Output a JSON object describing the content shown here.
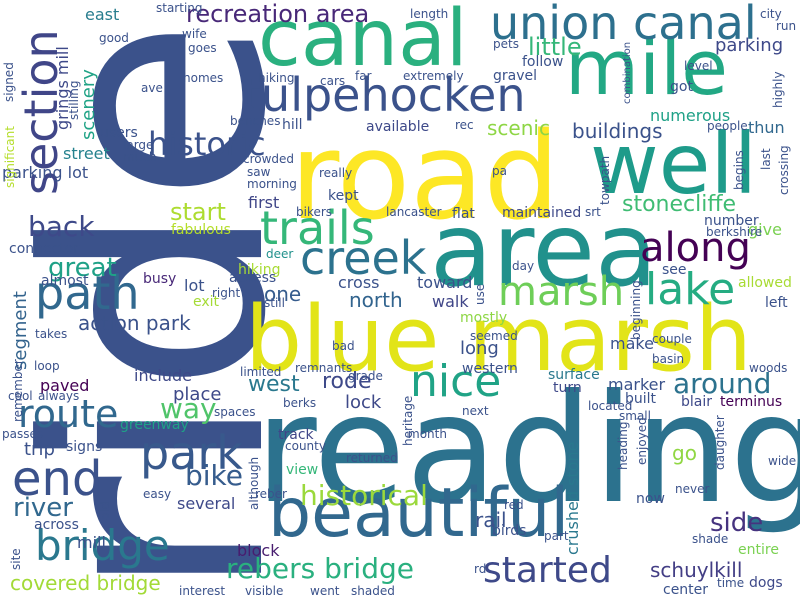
{
  "colors": {
    "background": "#ffffff",
    "palette": [
      "#440154",
      "#46327e",
      "#365c8d",
      "#277f8e",
      "#1fa187",
      "#4ac16d",
      "#a0da39",
      "#fde725"
    ]
  },
  "words": [
    {
      "text": "ride",
      "color": "#3b528b"
    },
    {
      "text": "reading",
      "color": "#2c728e"
    },
    {
      "text": "road",
      "color": "#fde725"
    },
    {
      "text": "blue marsh",
      "color": "#e2e418"
    },
    {
      "text": "area",
      "color": "#21918c"
    },
    {
      "text": "canal",
      "color": "#2ab07f"
    },
    {
      "text": "mile",
      "color": "#22a884"
    },
    {
      "text": "well",
      "color": "#1e9b8a"
    },
    {
      "text": "beautiful",
      "color": "#31688e"
    },
    {
      "text": "union canal",
      "color": "#2d708e"
    },
    {
      "text": "tulpehocken",
      "color": "#3b528b"
    },
    {
      "text": "section",
      "color": "#404688"
    },
    {
      "text": "trails",
      "color": "#35b779"
    },
    {
      "text": "along",
      "color": "#440154"
    },
    {
      "text": "creek",
      "color": "#2c728e"
    },
    {
      "text": "path",
      "color": "#31688e"
    },
    {
      "text": "marsh",
      "color": "#6ece58"
    },
    {
      "text": "lake",
      "color": "#25ac82"
    },
    {
      "text": "park",
      "color": "#38598c"
    },
    {
      "text": "end",
      "color": "#3b528b"
    },
    {
      "text": "bridge",
      "color": "#2a788e"
    },
    {
      "text": "started",
      "color": "#3e4989"
    },
    {
      "text": "nice",
      "color": "#20a386"
    },
    {
      "text": "rebers bridge",
      "color": "#2ab07f"
    },
    {
      "text": "route",
      "color": "#31688e"
    },
    {
      "text": "historic",
      "color": "#3b528b"
    },
    {
      "text": "historical",
      "color": "#9bd93c"
    },
    {
      "text": "recreation area",
      "color": "#482878"
    },
    {
      "text": "great",
      "color": "#1fa187"
    },
    {
      "text": "back",
      "color": "#3e4989"
    },
    {
      "text": "bike",
      "color": "#365c8d"
    },
    {
      "text": "river",
      "color": "#31688e"
    },
    {
      "text": "way",
      "color": "#50c46a"
    },
    {
      "text": "around",
      "color": "#2c728e"
    },
    {
      "text": "side",
      "color": "#46337f"
    },
    {
      "text": "stonecliffe",
      "color": "#3fbc73"
    },
    {
      "text": "schuylkill",
      "color": "#433e85"
    },
    {
      "text": "start",
      "color": "#addc30"
    },
    {
      "text": "little",
      "color": "#35b779"
    },
    {
      "text": "parking",
      "color": "#3e4989"
    },
    {
      "text": "buildings",
      "color": "#3b528b"
    },
    {
      "text": "west",
      "color": "#2a788e"
    },
    {
      "text": "rode",
      "color": "#3e4989"
    },
    {
      "text": "north",
      "color": "#32648e"
    },
    {
      "text": "action park",
      "color": "#3b528b"
    },
    {
      "text": "covered bridge",
      "color": "#a2da37"
    },
    {
      "text": "one",
      "color": "#365c8d"
    },
    {
      "text": "scenery",
      "color": "#20a386"
    },
    {
      "text": "scenic",
      "color": "#8ed645"
    },
    {
      "text": "segment",
      "color": "#33638d"
    },
    {
      "text": "crushed stone",
      "color": "#2a788e"
    },
    {
      "text": "rail",
      "color": "#3b528b"
    },
    {
      "text": "block",
      "color": "#481d6f"
    },
    {
      "text": "several",
      "color": "#3e4989"
    },
    {
      "text": "include",
      "color": "#3e4989"
    },
    {
      "text": "place",
      "color": "#3e4989"
    },
    {
      "text": "parking lot",
      "color": "#3b528b"
    },
    {
      "text": "street",
      "color": "#26828e"
    },
    {
      "text": "lock",
      "color": "#3e4989"
    },
    {
      "text": "long",
      "color": "#3b528b"
    },
    {
      "text": "walk",
      "color": "#404688"
    },
    {
      "text": "make",
      "color": "#3b528b"
    },
    {
      "text": "marker",
      "color": "#3b528b"
    },
    {
      "text": "numerous",
      "color": "#1fa187"
    },
    {
      "text": "thun",
      "color": "#31688e"
    },
    {
      "text": "grings mill",
      "color": "#3e4989"
    },
    {
      "text": "east",
      "color": "#287d8e"
    },
    {
      "text": "mill",
      "color": "#3b528b"
    },
    {
      "text": "paved",
      "color": "#440154"
    },
    {
      "text": "trip",
      "color": "#3b528b"
    },
    {
      "text": "cross",
      "color": "#3b528b"
    },
    {
      "text": "available",
      "color": "#3e4989"
    },
    {
      "text": "hill",
      "color": "#3b528b"
    },
    {
      "text": "first",
      "color": "#404688"
    },
    {
      "text": "kept",
      "color": "#3b528b"
    },
    {
      "text": "lot",
      "color": "#3b528b"
    },
    {
      "text": "exit",
      "color": "#a5db36"
    },
    {
      "text": "access",
      "color": "#3b528b"
    },
    {
      "text": "busy",
      "color": "#482878"
    },
    {
      "text": "deer",
      "color": "#21918c"
    },
    {
      "text": "hiking",
      "color": "#a8db34"
    },
    {
      "text": "toward",
      "color": "#3b528b"
    },
    {
      "text": "mostly",
      "color": "#8ed645"
    },
    {
      "text": "surface",
      "color": "#2a788e"
    },
    {
      "text": "turn",
      "color": "#3e4989"
    },
    {
      "text": "built",
      "color": "#3b528b"
    },
    {
      "text": "blair",
      "color": "#3e4989"
    },
    {
      "text": "terminus",
      "color": "#440154"
    },
    {
      "text": "western",
      "color": "#3b528b"
    },
    {
      "text": "track",
      "color": "#404688"
    },
    {
      "text": "county",
      "color": "#3b528b"
    },
    {
      "text": "view",
      "color": "#35b779"
    },
    {
      "text": "returned",
      "color": "#3b528b"
    },
    {
      "text": "greenway",
      "color": "#1fa187"
    },
    {
      "text": "signs",
      "color": "#3b528b"
    },
    {
      "text": "across",
      "color": "#3b528b"
    },
    {
      "text": "site",
      "color": "#3b528b"
    },
    {
      "text": "old",
      "color": "#3b528b"
    },
    {
      "text": "go",
      "color": "#90d743"
    },
    {
      "text": "now",
      "color": "#3b528b"
    },
    {
      "text": "red",
      "color": "#3b528b"
    },
    {
      "text": "birds",
      "color": "#3b528b"
    },
    {
      "text": "part",
      "color": "#3b528b"
    },
    {
      "text": "shade",
      "color": "#3b528b"
    },
    {
      "text": "entire",
      "color": "#7ad151"
    },
    {
      "text": "dogs",
      "color": "#3e4989"
    },
    {
      "text": "center",
      "color": "#3b528b"
    },
    {
      "text": "time",
      "color": "#3b528b"
    },
    {
      "text": "wide",
      "color": "#3b528b"
    },
    {
      "text": "woods",
      "color": "#3b528b"
    },
    {
      "text": "left",
      "color": "#3b528b"
    },
    {
      "text": "allowed",
      "color": "#a8db34"
    },
    {
      "text": "see",
      "color": "#3b528b"
    },
    {
      "text": "give",
      "color": "#7ad151"
    },
    {
      "text": "number",
      "color": "#3b528b"
    },
    {
      "text": "berkshire",
      "color": "#3b528b"
    },
    {
      "text": "day",
      "color": "#3b528b"
    },
    {
      "text": "srt",
      "color": "#3b528b"
    },
    {
      "text": "maintained",
      "color": "#3e4989"
    },
    {
      "text": "flat",
      "color": "#3b528b"
    },
    {
      "text": "lancaster",
      "color": "#3b528b"
    },
    {
      "text": "bikers",
      "color": "#3b528b"
    },
    {
      "text": "fabulous",
      "color": "#b5de2b"
    },
    {
      "text": "connector",
      "color": "#3b528b"
    },
    {
      "text": "almost",
      "color": "#3b528b"
    },
    {
      "text": "takes",
      "color": "#3b528b"
    },
    {
      "text": "loop",
      "color": "#3b528b"
    },
    {
      "text": "remember",
      "color": "#3b528b"
    },
    {
      "text": "cool",
      "color": "#3b528b"
    },
    {
      "text": "always",
      "color": "#3b528b"
    },
    {
      "text": "passes",
      "color": "#3b528b"
    },
    {
      "text": "significant",
      "color": "#b5de2b"
    },
    {
      "text": "stilling",
      "color": "#3b528b"
    },
    {
      "text": "users",
      "color": "#3b528b"
    },
    {
      "text": "large",
      "color": "#3b528b"
    },
    {
      "text": "much",
      "color": "#3b528b"
    },
    {
      "text": "homes",
      "color": "#3b528b"
    },
    {
      "text": "ave",
      "color": "#3b528b"
    },
    {
      "text": "wife",
      "color": "#3b528b"
    },
    {
      "text": "goes",
      "color": "#3b528b"
    },
    {
      "text": "good",
      "color": "#3b528b"
    },
    {
      "text": "starting",
      "color": "#3b528b"
    },
    {
      "text": "signed",
      "color": "#3b528b"
    },
    {
      "text": "hiking",
      "color": "#3b528b"
    },
    {
      "text": "cars",
      "color": "#3b528b"
    },
    {
      "text": "far",
      "color": "#3b528b"
    },
    {
      "text": "extremely",
      "color": "#3b528b"
    },
    {
      "text": "gravel",
      "color": "#3b528b"
    },
    {
      "text": "follow",
      "color": "#3b528b"
    },
    {
      "text": "pets",
      "color": "#3b528b"
    },
    {
      "text": "length",
      "color": "#3b528b"
    },
    {
      "text": "combination",
      "color": "#3b528b"
    },
    {
      "text": "level",
      "color": "#3b528b"
    },
    {
      "text": "got",
      "color": "#3b528b"
    },
    {
      "text": "city",
      "color": "#3b528b"
    },
    {
      "text": "run",
      "color": "#3b528b"
    },
    {
      "text": "highly",
      "color": "#3b528b"
    },
    {
      "text": "people",
      "color": "#3b528b"
    },
    {
      "text": "last",
      "color": "#3b528b"
    },
    {
      "text": "crossing",
      "color": "#3b528b"
    },
    {
      "text": "begins",
      "color": "#3b528b"
    },
    {
      "text": "towpath",
      "color": "#3b528b"
    },
    {
      "text": "benches",
      "color": "#3b528b"
    },
    {
      "text": "crowded",
      "color": "#3b528b"
    },
    {
      "text": "saw",
      "color": "#3b528b"
    },
    {
      "text": "morning",
      "color": "#3b528b"
    },
    {
      "text": "really",
      "color": "#3b528b"
    },
    {
      "text": "rec",
      "color": "#3b528b"
    },
    {
      "text": "pa",
      "color": "#3b528b"
    },
    {
      "text": "right",
      "color": "#3b528b"
    },
    {
      "text": "still",
      "color": "#3b528b"
    },
    {
      "text": "use",
      "color": "#3b528b"
    },
    {
      "text": "seemed",
      "color": "#3b528b"
    },
    {
      "text": "bad",
      "color": "#3b528b"
    },
    {
      "text": "remnants",
      "color": "#3b528b"
    },
    {
      "text": "limited",
      "color": "#3b528b"
    },
    {
      "text": "grade",
      "color": "#3b528b"
    },
    {
      "text": "berks",
      "color": "#3b528b"
    },
    {
      "text": "spaces",
      "color": "#3b528b"
    },
    {
      "text": "heritage",
      "color": "#3b528b"
    },
    {
      "text": "month",
      "color": "#3b528b"
    },
    {
      "text": "next",
      "color": "#3b528b"
    },
    {
      "text": "located",
      "color": "#3b528b"
    },
    {
      "text": "small",
      "color": "#3b528b"
    },
    {
      "text": "heading",
      "color": "#3b528b"
    },
    {
      "text": "enjoyed",
      "color": "#3b528b"
    },
    {
      "text": "beginning",
      "color": "#3b528b"
    },
    {
      "text": "couple",
      "color": "#3b528b"
    },
    {
      "text": "basin",
      "color": "#3b528b"
    },
    {
      "text": "daughter",
      "color": "#3b528b"
    },
    {
      "text": "never",
      "color": "#3b528b"
    },
    {
      "text": "although",
      "color": "#3b528b"
    },
    {
      "text": "reber",
      "color": "#3b528b"
    },
    {
      "text": "easy",
      "color": "#3b528b"
    },
    {
      "text": "interest",
      "color": "#3b528b"
    },
    {
      "text": "visible",
      "color": "#3b528b"
    },
    {
      "text": "went",
      "color": "#3b528b"
    },
    {
      "text": "shaded",
      "color": "#3b528b"
    },
    {
      "text": "rd",
      "color": "#3b528b"
    }
  ]
}
